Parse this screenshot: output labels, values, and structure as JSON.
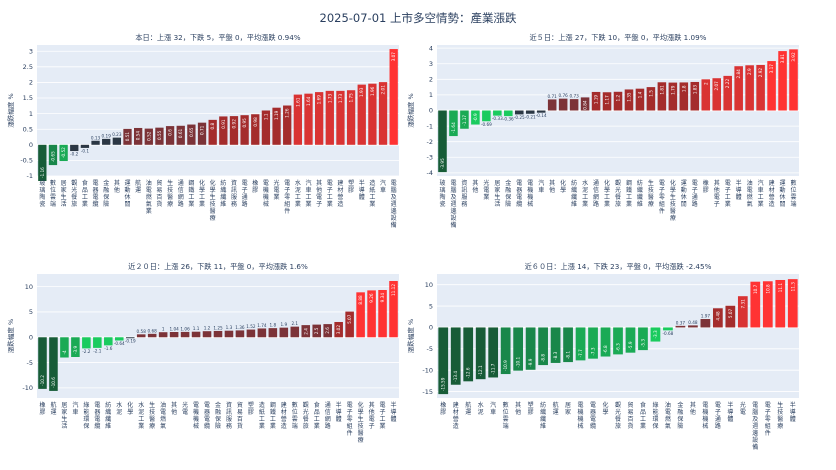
{
  "title": "2025-07-01 上市多空情勢：產業漲跌",
  "ylabel": "漲跌幅度 %",
  "chart_data": [
    {
      "type": "bar",
      "title": "本日：上漲 32，下跌 5，平盤 0，平均漲跌 0.94%",
      "ylabel": "漲跌幅度 %",
      "ylim": [
        -1,
        3.2
      ],
      "yticks": [
        -1,
        -0.5,
        0,
        0.5,
        1,
        1.5,
        2,
        2.5,
        3
      ],
      "categories": [
        "玻璃陶瓷",
        "數位雲端",
        "居家生活",
        "觀光餐旅",
        "食品工業",
        "電器電纜",
        "金融保險",
        "其他",
        "運動休閒",
        "航運",
        "油電燃氣業",
        "貿易百貨",
        "生技醫療",
        "通信網路",
        "鋼鐵工業",
        "化學工業",
        "化學生技醫療",
        "紡織纖維",
        "資訊服務",
        "電子通路",
        "橡膠",
        "電機機械",
        "光電業",
        "電子零組件",
        "水泥工業",
        "汽車工業",
        "其他電子",
        "電子工業",
        "建材營造",
        "塑膠",
        "半導體",
        "造紙工業",
        "汽車",
        "電腦及週邊設備"
      ],
      "values": [
        -1.16,
        -0.65,
        -0.52,
        -0.2,
        -0.1,
        0.13,
        0.19,
        0.23,
        0.51,
        0.54,
        0.52,
        0.55,
        0.6,
        0.61,
        0.65,
        0.71,
        0.8,
        0.91,
        0.92,
        0.95,
        0.98,
        1.1,
        1.19,
        1.26,
        1.61,
        1.64,
        1.69,
        1.73,
        1.73,
        1.75,
        1.93,
        1.96,
        2.01,
        3.07
      ],
      "labels": [
        "-1.16",
        "-0.65",
        "-0.52",
        "-0.2",
        "-0.1",
        "0.13",
        "0.19",
        "0.23",
        "0.51",
        "0.54",
        "0.52",
        "0.55",
        "0.6",
        "0.61",
        "0.65",
        "0.71",
        "0.8",
        "0.91",
        "0.92",
        "0.95",
        "0.98",
        "1.1",
        "1.19",
        "1.26",
        "1.61",
        "1.64",
        "1.69",
        "1.73",
        "1.73",
        "1.75",
        "1.93",
        "1.96",
        "2.01",
        "3.07"
      ]
    },
    {
      "type": "bar",
      "title": "近５日：上漲 27，下跌 10，平盤 0，平均漲跌 1.09%",
      "ylabel": "漲跌幅度 %",
      "ylim": [
        -4.2,
        4.2
      ],
      "yticks": [
        -4,
        -3,
        -2,
        -1,
        0,
        1,
        2,
        3,
        4
      ],
      "categories": [
        "玻璃陶瓷",
        "電腦及週邊設備",
        "資訊服務",
        "其他",
        "光電業",
        "居家生活",
        "金融保險",
        "電器電纜",
        "電機機械",
        "汽車",
        "其他",
        "化學",
        "紡織纖維",
        "水泥工業",
        "通信網路",
        "化學工業",
        "觀光餐旅",
        "鋼鐵工業",
        "紡織纖維",
        "生技醫療",
        "電子零組件",
        "化學生技醫療",
        "運動休閒",
        "電子通路",
        "橡膠",
        "其他電子",
        "電子工業",
        "半導體",
        "油電燃氣",
        "汽車工業",
        "建材營造",
        "運動休閒",
        "數位雲端"
      ],
      "values": [
        -3.95,
        -1.64,
        -1.17,
        -0.9,
        -0.69,
        -0.33,
        -0.36,
        -0.25,
        -0.21,
        -0.14,
        0.71,
        0.76,
        0.73,
        0.84,
        1.19,
        1.17,
        1.2,
        1.35,
        1.4,
        1.5,
        1.81,
        1.79,
        1.8,
        1.83,
        2.0,
        2.07,
        2.22,
        2.84,
        2.9,
        2.92,
        3.17,
        3.81,
        3.92
      ],
      "labels": [
        "-3.95",
        "-1.64",
        "-1.17",
        "-0.9",
        "-0.69",
        "-0.33",
        "-0.36",
        "-0.25",
        "-0.21",
        "-0.14",
        "0.71",
        "0.76",
        "0.73",
        "0.84",
        "1.19",
        "1.17",
        "1.2",
        "1.35",
        "1.4",
        "1.5",
        "1.81",
        "1.79",
        "1.8",
        "1.83",
        "2",
        "2.07",
        "2.22",
        "2.84",
        "2.9",
        "2.92",
        "3.17",
        "3.81",
        "3.92"
      ]
    },
    {
      "type": "bar",
      "title": "近２０日：上漲 26，下跌 11，平盤 0，平均漲跌 1.6%",
      "ylabel": "漲跌幅度 %",
      "ylim": [
        -12,
        12.5
      ],
      "yticks": [
        -10,
        -5,
        0,
        5,
        10
      ],
      "categories": [
        "橡膠",
        "航運",
        "居家生活",
        "汽車",
        "綠能環保",
        "電器電纜",
        "紡織纖維",
        "水泥",
        "化學",
        "水泥工業",
        "生技醫療",
        "油電燃氣",
        "其他",
        "光電",
        "電機機械",
        "電器電纜",
        "金融保險",
        "資訊服務",
        "貿易百貨",
        "塑膠",
        "造紙工業",
        "鋼鐵工業",
        "建材營造",
        "數位雲端",
        "觀光餐旅",
        "食品工業",
        "通信網路",
        "半導體",
        "電子零組件",
        "化學生技醫療",
        "其他電子",
        "電子工業",
        "半導體"
      ],
      "values": [
        -10.2,
        -10.6,
        -4.0,
        -3.9,
        -2.2,
        -2.1,
        -1.6,
        -0.64,
        -0.19,
        0.58,
        0.68,
        1.0,
        1.04,
        1.06,
        1.1,
        1.2,
        1.25,
        1.3,
        1.36,
        1.52,
        1.74,
        1.8,
        1.9,
        2.1,
        2.4,
        2.5,
        2.6,
        3.02,
        5.07,
        8.88,
        9.26,
        9.34,
        11.12
      ],
      "labels": [
        "-10.2",
        "-10.6",
        "-4",
        "-3.9",
        "-2.2",
        "-2.1",
        "-1.6",
        "-0.64",
        "-0.19",
        "0.58",
        "0.68",
        "1",
        "1.04",
        "1.06",
        "1.1",
        "1.2",
        "1.25",
        "1.3",
        "1.36",
        "1.52",
        "1.74",
        "1.8",
        "1.9",
        "2.1",
        "2.4",
        "2.5",
        "2.6",
        "3.02",
        "5.07",
        "8.88",
        "9.26",
        "9.34",
        "11.12"
      ]
    },
    {
      "type": "bar",
      "title": "近６０日：上漲 14，下跌 23，平盤 0，平均漲跌 -2.45%",
      "ylabel": "漲跌幅度 %",
      "ylim": [
        -16.5,
        12.5
      ],
      "yticks": [
        -15,
        -10,
        -5,
        0,
        5,
        10
      ],
      "categories": [
        "橡膠",
        "建材營造",
        "航運",
        "水泥",
        "汽車",
        "數位雲端",
        "其他",
        "塑膠",
        "紡織纖維",
        "航運",
        "居家",
        "電機機械",
        "電器電纜",
        "化學",
        "觀光餐旅",
        "貿易百貨",
        "食品工業",
        "綠能環保",
        "油電燃氣",
        "金融保險",
        "其他",
        "電機機械",
        "電子通路",
        "半導體",
        "光電",
        "電腦及週邊設備",
        "電子零組件",
        "生技醫療",
        "半導體"
      ],
      "values": [
        -15.59,
        -13.4,
        -12.6,
        -12.1,
        -11.7,
        -10.9,
        -10.1,
        -9.9,
        -8.8,
        -8.3,
        -8.1,
        -7.7,
        -7.3,
        -6.8,
        -6.3,
        -5.9,
        -5.3,
        -3.3,
        -0.68,
        0.37,
        0.48,
        1.97,
        4.48,
        5.07,
        7.31,
        10.7,
        10.8,
        11.1,
        11.3
      ],
      "labels": [
        "-15.59",
        "-13.4",
        "-12.6",
        "-12.1",
        "-11.7",
        "-10.9",
        "-10.1",
        "-9.9",
        "-8.8",
        "-8.3",
        "-8.1",
        "-7.7",
        "-7.3",
        "-6.8",
        "-6.3",
        "-5.9",
        "-5.3",
        "-3.3",
        "-0.68",
        "0.37",
        "0.48",
        "1.97",
        "4.48",
        "5.07",
        "7.31",
        "10.7",
        "10.8",
        "11.1",
        "11.3"
      ]
    }
  ],
  "colors": {
    "plot_bg": "#E5ECF6",
    "grid": "#FFFFFF",
    "text": "#2A3F5F",
    "up": [
      "#7C3338",
      "#A42C2C",
      "#D93333",
      "#FF3333"
    ],
    "down": [
      "#175C37",
      "#19874A",
      "#1AAA55",
      "#1ACB5E"
    ],
    "flat": "#2B3744"
  }
}
